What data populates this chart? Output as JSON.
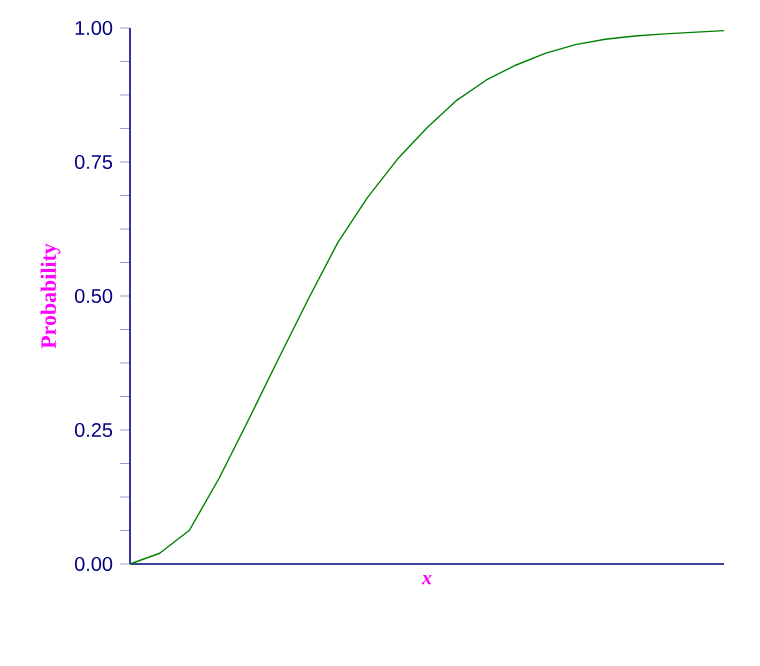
{
  "chart_data": {
    "type": "line",
    "xlabel": "x",
    "ylabel": "Probability",
    "categories": [
      null,
      null,
      null,
      null,
      null,
      null,
      null,
      null,
      null,
      null,
      null,
      null,
      null,
      null,
      null,
      null,
      null,
      null,
      null,
      null,
      null
    ],
    "values": [
      0,
      0.02,
      0.063,
      0.16,
      0.27,
      0.383,
      0.494,
      0.6,
      0.684,
      0.755,
      0.814,
      0.865,
      0.903,
      0.931,
      0.953,
      0.969,
      0.979,
      0.985,
      0.989,
      0.992,
      0.995
    ],
    "color": "#008000",
    "ylim": [
      0,
      1
    ],
    "yticks": [
      {
        "value": 0,
        "label": "0.00"
      },
      {
        "value": 0.25,
        "label": "0.25"
      },
      {
        "value": 0.5,
        "label": "0.50"
      },
      {
        "value": 0.75,
        "label": "0.75"
      },
      {
        "value": 1,
        "label": "1.00"
      }
    ],
    "grid": false,
    "marker": "none",
    "line_style": "solid"
  }
}
